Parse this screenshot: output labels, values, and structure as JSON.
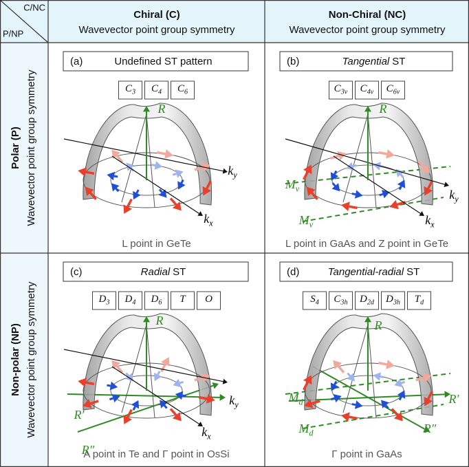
{
  "corner": {
    "top": "C/NC",
    "bottom": "P/NP"
  },
  "columns": [
    {
      "title": "Chiral (C)",
      "subtitle": "Wavevector point group symmetry"
    },
    {
      "title": "Non-Chiral (NC)",
      "subtitle": "Wavevector point group symmetry"
    }
  ],
  "rows": [
    {
      "title": "Polar (P)",
      "subtitle": "Wavevector point group symmetry"
    },
    {
      "title": "Non-polar (NP)",
      "subtitle": "Wavevector point group symmetry"
    }
  ],
  "cells": [
    {
      "label": "(a)",
      "title_parts": [
        {
          "text": "Undefined ST pattern",
          "italic": false
        }
      ],
      "groups": [
        {
          "base": "C",
          "sub": "3"
        },
        {
          "base": "C",
          "sub": "4"
        },
        {
          "base": "C",
          "sub": "6"
        }
      ],
      "axis_labels": [
        {
          "base": "R",
          "color": "#2e8b22"
        },
        {
          "base": "k",
          "sub": "y",
          "color": "#000000"
        },
        {
          "base": "k",
          "sub": "x",
          "color": "#000000"
        }
      ],
      "caption": "L point in GeTe"
    },
    {
      "label": "(b)",
      "title_parts": [
        {
          "text": "Tangential",
          "italic": true
        },
        {
          "text": "ST",
          "italic": false
        }
      ],
      "groups": [
        {
          "base": "C",
          "sub": "3v"
        },
        {
          "base": "C",
          "sub": "4v"
        },
        {
          "base": "C",
          "sub": "6v"
        }
      ],
      "axis_labels": [
        {
          "base": "R",
          "color": "#2e8b22"
        },
        {
          "base": "M",
          "sub": "v",
          "color": "#2e8b22"
        },
        {
          "base": "M",
          "sub": "v",
          "color": "#2e8b22"
        },
        {
          "base": "k",
          "sub": "y",
          "color": "#000000"
        },
        {
          "base": "k",
          "sub": "x",
          "color": "#000000"
        }
      ],
      "caption": "L point in GaAs and Z point in GeTe"
    },
    {
      "label": "(c)",
      "title_parts": [
        {
          "text": "Radial",
          "italic": true
        },
        {
          "text": "ST",
          "italic": false
        }
      ],
      "groups": [
        {
          "base": "D",
          "sub": "3"
        },
        {
          "base": "D",
          "sub": "4"
        },
        {
          "base": "D",
          "sub": "6"
        },
        {
          "base": "T"
        },
        {
          "base": "O"
        }
      ],
      "axis_labels": [
        {
          "base": "R",
          "color": "#2e8b22"
        },
        {
          "base": "R′",
          "color": "#2e8b22"
        },
        {
          "base": "R″",
          "color": "#2e8b22"
        },
        {
          "base": "k",
          "sub": "y",
          "color": "#000000"
        },
        {
          "base": "k",
          "sub": "x",
          "color": "#000000"
        }
      ],
      "caption": "A point in Te and Γ point in OsSi"
    },
    {
      "label": "(d)",
      "title_parts": [
        {
          "text": "Tangential-radial",
          "italic": true
        },
        {
          "text": "ST",
          "italic": false
        }
      ],
      "groups": [
        {
          "base": "S",
          "sub": "4"
        },
        {
          "base": "C",
          "sub": "3h"
        },
        {
          "base": "D",
          "sub": "2d"
        },
        {
          "base": "D",
          "sub": "3h"
        },
        {
          "base": "T",
          "sub": "d"
        }
      ],
      "axis_labels": [
        {
          "base": "R",
          "color": "#2e8b22"
        },
        {
          "base": "M",
          "sub": "d",
          "color": "#2e8b22"
        },
        {
          "base": "M",
          "sub": "d",
          "color": "#2e8b22"
        },
        {
          "base": "R′",
          "color": "#2e8b22"
        },
        {
          "base": "R″",
          "color": "#2e8b22"
        }
      ],
      "caption": "Γ point in GaAs"
    }
  ]
}
